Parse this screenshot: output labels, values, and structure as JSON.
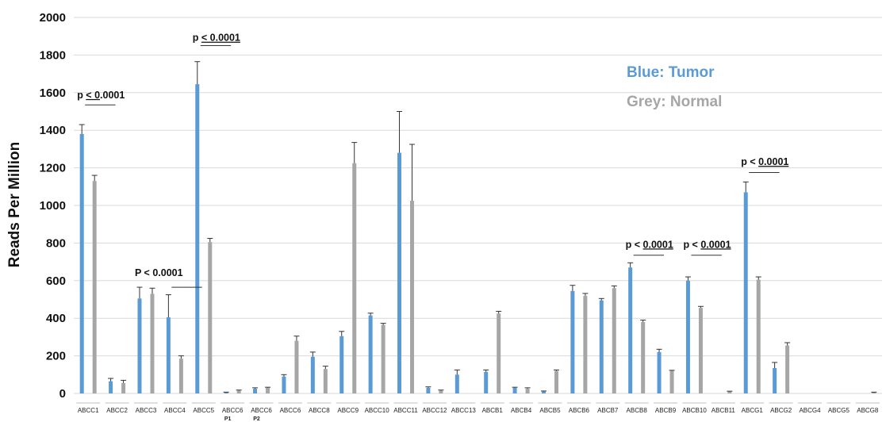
{
  "chart_data": {
    "type": "bar",
    "ylabel": "Reads Per Million",
    "ylim": [
      0,
      2000
    ],
    "yticks": [
      "0",
      "200",
      "400",
      "600",
      "800",
      "1000",
      "1200",
      "1400",
      "1600",
      "1800",
      "2000"
    ],
    "grid": true,
    "categories": [
      {
        "label": "ABCC1",
        "sub": ""
      },
      {
        "label": "ABCC2",
        "sub": ""
      },
      {
        "label": "ABCC3",
        "sub": ""
      },
      {
        "label": "ABCC4",
        "sub": ""
      },
      {
        "label": "ABCC5",
        "sub": ""
      },
      {
        "label": "ABCC6",
        "sub": "P1"
      },
      {
        "label": "ABCC6",
        "sub": "P2"
      },
      {
        "label": "ABCC6",
        "sub": ""
      },
      {
        "label": "ABCC8",
        "sub": ""
      },
      {
        "label": "ABCC9",
        "sub": ""
      },
      {
        "label": "ABCC10",
        "sub": ""
      },
      {
        "label": "ABCC11",
        "sub": ""
      },
      {
        "label": "ABCC12",
        "sub": ""
      },
      {
        "label": "ABCC13",
        "sub": ""
      },
      {
        "label": "ABCB1",
        "sub": ""
      },
      {
        "label": "ABCB4",
        "sub": ""
      },
      {
        "label": "ABCB5",
        "sub": ""
      },
      {
        "label": "ABCB6",
        "sub": ""
      },
      {
        "label": "ABCB7",
        "sub": ""
      },
      {
        "label": "ABCB8",
        "sub": ""
      },
      {
        "label": "ABCB9",
        "sub": ""
      },
      {
        "label": "ABCB10",
        "sub": ""
      },
      {
        "label": "ABCB11",
        "sub": ""
      },
      {
        "label": "ABCG1",
        "sub": ""
      },
      {
        "label": "ABCG2",
        "sub": ""
      },
      {
        "label": "ABCG4",
        "sub": ""
      },
      {
        "label": "ABCG5",
        "sub": ""
      },
      {
        "label": "ABCG8",
        "sub": ""
      }
    ],
    "series": [
      {
        "name": "Tumor",
        "color": "#5b9bd5",
        "values": [
          1380,
          65,
          505,
          405,
          1645,
          5,
          25,
          90,
          195,
          305,
          415,
          1280,
          30,
          100,
          115,
          30,
          10,
          545,
          495,
          670,
          220,
          600,
          0,
          1070,
          135,
          0,
          0,
          0
        ],
        "errors": [
          50,
          15,
          60,
          120,
          120,
          2,
          5,
          10,
          25,
          25,
          12,
          220,
          5,
          25,
          10,
          3,
          3,
          30,
          10,
          25,
          15,
          20,
          0,
          55,
          30,
          0,
          0,
          0
        ]
      },
      {
        "name": "Normal",
        "color": "#a6a6a6",
        "values": [
          1130,
          55,
          530,
          185,
          805,
          15,
          30,
          280,
          130,
          1225,
          365,
          1025,
          15,
          0,
          425,
          25,
          120,
          520,
          560,
          380,
          120,
          455,
          10,
          605,
          255,
          0,
          0,
          5
        ],
        "errors": [
          30,
          15,
          30,
          15,
          20,
          3,
          3,
          25,
          15,
          110,
          8,
          300,
          3,
          0,
          12,
          5,
          5,
          12,
          12,
          10,
          3,
          8,
          2,
          15,
          15,
          0,
          0,
          2
        ]
      }
    ],
    "legend": [
      {
        "text": "Blue: Tumor",
        "color": "#5b9bd5"
      },
      {
        "text": "Grey: Normal",
        "color": "#a6a6a6"
      }
    ],
    "annotations": [
      {
        "text_prefix": "p ",
        "text_u": "< 0",
        "text_suffix": ".0001",
        "cat": 0,
        "y": 1570,
        "line_from": 0,
        "line_to": 1,
        "line_y": 1535
      },
      {
        "text_prefix": "p ",
        "text_u": "< 0.0001",
        "text_suffix": "",
        "cat": 4,
        "y": 1875,
        "line_from": 4,
        "line_to": 5,
        "line_y": 1850
      },
      {
        "text_prefix": "P < 0.0001",
        "text_u": "",
        "text_suffix": "",
        "cat": 2,
        "y": 625,
        "line_from": 3,
        "line_to": 4,
        "line_y": 565
      },
      {
        "text_prefix": "p < ",
        "text_u": "0.0001",
        "text_suffix": "",
        "cat": 19,
        "y": 775,
        "line_from": 19,
        "line_to": 20,
        "line_y": 735
      },
      {
        "text_prefix": "p < ",
        "text_u": "0.0001",
        "text_suffix": "",
        "cat": 21,
        "y": 775,
        "line_from": 21,
        "line_to": 22,
        "line_y": 735
      },
      {
        "text_prefix": "p < ",
        "text_u": "0.0001",
        "text_suffix": "",
        "cat": 23,
        "y": 1215,
        "line_from": 23,
        "line_to": 24,
        "line_y": 1175
      }
    ]
  }
}
